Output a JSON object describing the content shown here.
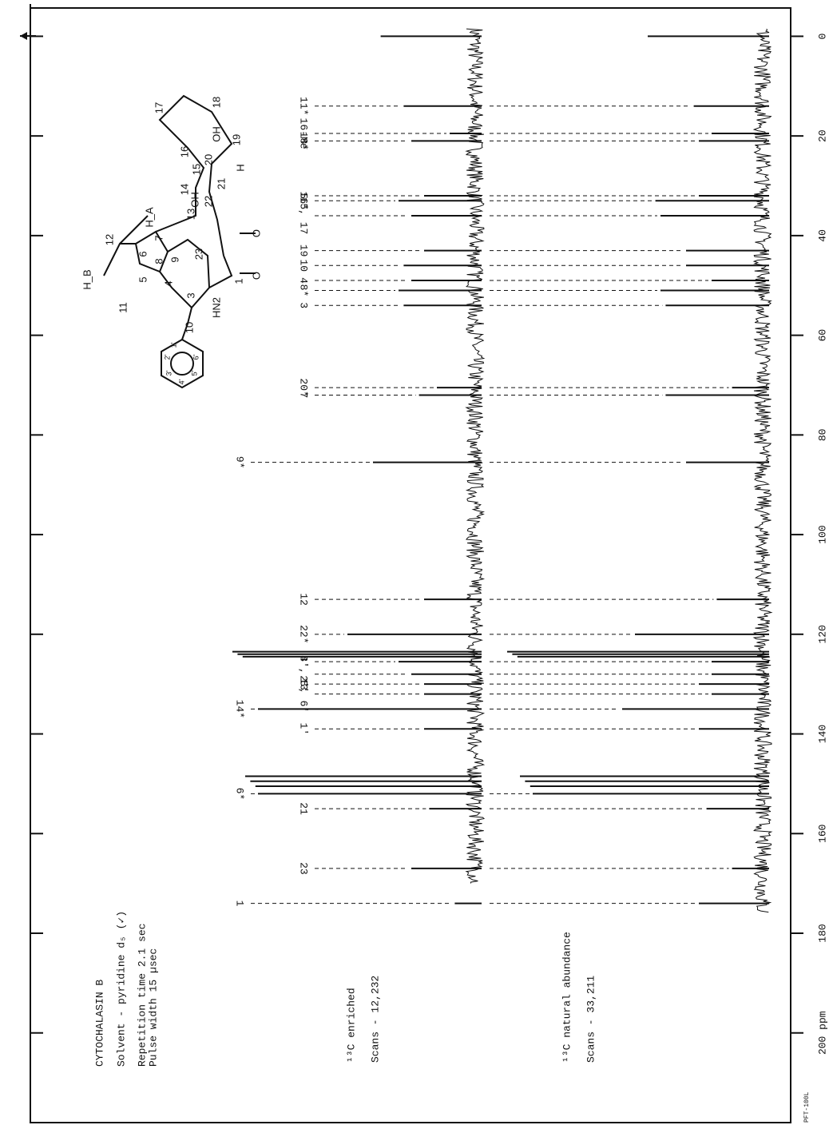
{
  "chart_data": {
    "type": "spectrum",
    "title": "CYTOCHALASIN B",
    "notes": [
      "Solvent - pyridine d₅ (✓)",
      "Repetition time   2.1 sec",
      "Pulse width       15 µsec"
    ],
    "instrument": "PFT-100L",
    "x": [
      0,
      14,
      19.5,
      21,
      32,
      33,
      36,
      43,
      46,
      49,
      51,
      54,
      70.5,
      72,
      85.5,
      113,
      120,
      123.5,
      124,
      124.5,
      125.5,
      128,
      130,
      132,
      135,
      139,
      148.5,
      149.5,
      150.5,
      152,
      155,
      167,
      174
    ],
    "labels": [
      null,
      "11*",
      "16-Me",
      "18*",
      "5",
      "16*",
      "15, 17",
      "19",
      "10",
      "4",
      "8*",
      "3",
      "20*",
      "7",
      "9*",
      "12",
      "22*",
      null,
      null,
      null,
      "4'",
      "3', 5'",
      "13",
      "2', 6'",
      "14*",
      "1'",
      null,
      null,
      null,
      "6*",
      "21",
      "23",
      "1"
    ],
    "series": [
      {
        "name": "¹³C enriched",
        "scans": "Scans - 12,232",
        "color": "#111111",
        "values": [
          37,
          28,
          10,
          25,
          20,
          30,
          25,
          20,
          28,
          25,
          30,
          28,
          15,
          22,
          40,
          20,
          50,
          95,
          93,
          91,
          30,
          25,
          20,
          20,
          85,
          20,
          90,
          88,
          86,
          85,
          18,
          25,
          8
        ]
      },
      {
        "name": "¹³C natural abundance",
        "scans": "Scans - 33,211",
        "color": "#111111",
        "values": [
          45,
          27,
          20,
          25,
          25,
          42,
          40,
          30,
          30,
          20,
          40,
          38,
          12,
          38,
          30,
          18,
          50,
          100,
          98,
          96,
          20,
          20,
          25,
          20,
          55,
          25,
          95,
          93,
          91,
          90,
          22,
          12,
          25
        ]
      }
    ],
    "xlim": [
      -6,
      218
    ],
    "xticks": [
      0,
      20,
      40,
      60,
      80,
      100,
      120,
      140,
      160,
      180,
      {
        "value": 200,
        "label": "200 ppm"
      }
    ],
    "ylim": [
      0,
      100
    ]
  },
  "structure": {
    "labels": [
      "H_B",
      "H_A",
      "12",
      "OH",
      "6",
      "7",
      "8",
      "5",
      "4",
      "9",
      "3",
      "10",
      "11",
      "HN2",
      "1",
      "O",
      "O",
      "23",
      "13",
      "14",
      "15",
      "16",
      "17",
      "18",
      "19",
      "20",
      "21",
      "22",
      "OH",
      "H",
      "1'",
      "2'",
      "3'",
      "4'",
      "5'",
      "6'"
    ]
  }
}
